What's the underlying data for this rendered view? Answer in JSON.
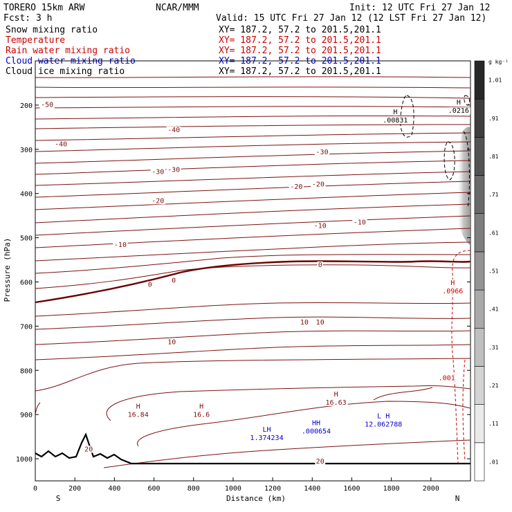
{
  "header": {
    "model": "TORERO  15km ARW",
    "center": "NCAR/MMM",
    "init": "Init: 12 UTC Fri 27 Jan 12",
    "fcst": "Fcst:   3 h",
    "valid": "Valid: 15 UTC Fri 27 Jan 12 (12 LST Fri 27 Jan 12)"
  },
  "legend": [
    {
      "name": "Snow mixing ratio",
      "xy": "",
      "color": "#000000"
    },
    {
      "name": "Temperature",
      "xy": "XY= 187.2, 57.2 to 201.5,201.1",
      "color": "#cc0000"
    },
    {
      "name": "Rain water mixing ratio",
      "xy": "XY= 187.2, 57.2 to 201.5,201.1",
      "color": "#cc0000"
    },
    {
      "name": "Cloud water mixing ratio",
      "xy": "XY= 187.2, 57.2 to 201.5,201.1",
      "color": "#0000cc"
    },
    {
      "name": "Cloud ice mixing ratio",
      "xy": "XY= 187.2, 57.2 to 201.5,201.1",
      "color": "#000000"
    }
  ],
  "legend_first_xy": "XY= 187.2, 57.2 to 201.5,201.1",
  "colors": {
    "temperature": "#7a1010",
    "zero_isotherm": "#6a0000",
    "rain": "#cc0000",
    "cloud_water": "#0000cc",
    "terrain": "#000000"
  },
  "chart_data": {
    "type": "cross-section",
    "xlabel": "Distance (km)",
    "ylabel": "Pressure (hPa)",
    "xlim": [
      0,
      2200
    ],
    "ylim": [
      1050,
      100
    ],
    "x_ticks": [
      0,
      200,
      400,
      600,
      800,
      1000,
      1200,
      1400,
      1600,
      1800,
      2000
    ],
    "y_ticks": [
      200,
      300,
      400,
      500,
      600,
      700,
      800,
      900,
      1000
    ],
    "endpoints": {
      "left": "S",
      "right": "N"
    },
    "colorbar": {
      "units": "g kg⁻¹",
      "levels": [
        ".01",
        ".11",
        ".21",
        ".31",
        ".41",
        ".51",
        ".61",
        ".71",
        ".81",
        ".91",
        "1.01"
      ]
    },
    "temperature_contours": [
      {
        "label": "-50",
        "x": 60,
        "p": 198
      },
      {
        "label": "-40",
        "x": 700,
        "p": 255
      },
      {
        "label": "-40",
        "x": 130,
        "p": 287
      },
      {
        "label": "-30",
        "x": 1450,
        "p": 305
      },
      {
        "label": "-30",
        "x": 700,
        "p": 345
      },
      {
        "label": "-30",
        "x": 620,
        "p": 350
      },
      {
        "label": "-20",
        "x": 1430,
        "p": 378
      },
      {
        "label": "-20",
        "x": 1320,
        "p": 383
      },
      {
        "label": "-20",
        "x": 620,
        "p": 415
      },
      {
        "label": "-10",
        "x": 1640,
        "p": 464
      },
      {
        "label": "-10",
        "x": 1440,
        "p": 472
      },
      {
        "label": "-10",
        "x": 430,
        "p": 515
      },
      {
        "label": "0",
        "x": 1440,
        "p": 560
      },
      {
        "label": "0",
        "x": 700,
        "p": 595
      },
      {
        "label": "0",
        "x": 580,
        "p": 605
      },
      {
        "label": "10",
        "x": 1440,
        "p": 690
      },
      {
        "label": "10",
        "x": 1360,
        "p": 690
      },
      {
        "label": "10",
        "x": 690,
        "p": 735
      },
      {
        "label": "20",
        "x": 1440,
        "p": 1005
      },
      {
        "label": "20",
        "x": 270,
        "p": 977
      }
    ],
    "temperature_maxima": [
      {
        "label": "H",
        "value": "16.84",
        "x": 520,
        "p": 893
      },
      {
        "label": "H",
        "value": "16.6",
        "x": 840,
        "p": 893
      },
      {
        "label": "H",
        "value": "16.63",
        "x": 1520,
        "p": 865
      }
    ],
    "snow_maxima": [
      {
        "label": "H",
        "value": ".00831",
        "x": 1820,
        "p": 227
      },
      {
        "label": "H",
        "value": ".0216",
        "x": 2140,
        "p": 205
      }
    ],
    "rain_annotations": [
      {
        "label": "H",
        "value": ".0966",
        "x": 2110,
        "p": 613
      },
      {
        "label": "",
        "value": ".001",
        "x": 2080,
        "p": 810
      }
    ],
    "cloud_water_annotations": [
      {
        "label": "LH",
        "value": "1.374234",
        "x": 1170,
        "p": 945
      },
      {
        "label": "HH",
        "value": ".000654",
        "x": 1420,
        "p": 930
      },
      {
        "label": "L H",
        "value": "12.062788",
        "x": 1760,
        "p": 915
      }
    ]
  }
}
